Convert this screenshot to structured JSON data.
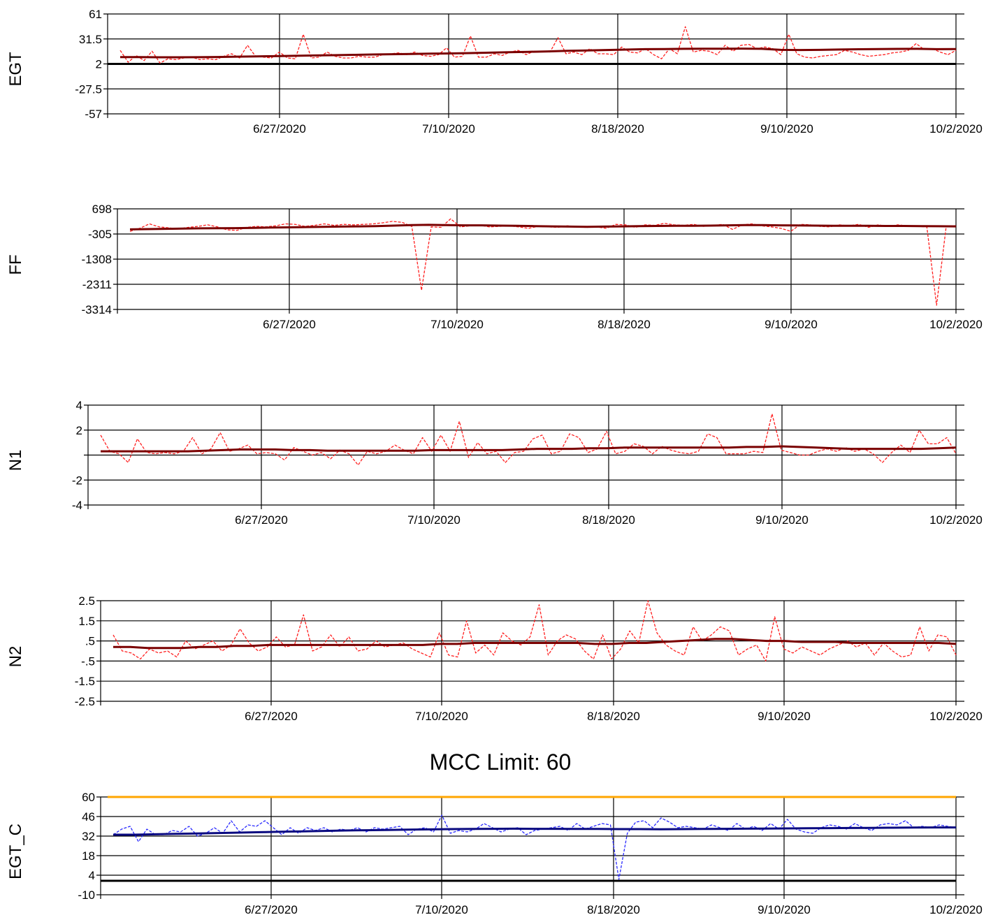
{
  "colors": {
    "raw": "#ff2020",
    "trend": "#7a0000",
    "raw_c": "#2a2aff",
    "trend_c": "#0a0a80",
    "limit": "#ffa500",
    "grid": "#000000"
  },
  "chart_data": [
    {
      "type": "line",
      "ylabel": "EGT",
      "title": "",
      "yticks": [
        "61",
        "31.5",
        "2",
        "-27.5",
        "-57"
      ],
      "ylim": [
        -57,
        61
      ],
      "xticks": [
        "6/27/2020",
        "7/10/2020",
        "8/18/2020",
        "9/10/2020",
        "10/2/2020"
      ],
      "baseline": 2,
      "series": [
        {
          "style": "raw",
          "values": [
            18,
            4,
            12,
            6,
            17,
            3,
            8,
            7,
            9,
            10,
            7,
            8,
            7,
            11,
            14,
            9,
            24,
            11,
            10,
            9,
            16,
            9,
            8,
            37,
            9,
            10,
            16,
            11,
            9,
            9,
            11,
            10,
            10,
            13,
            14,
            15,
            13,
            16,
            12,
            11,
            13,
            21,
            10,
            11,
            35,
            10,
            10,
            14,
            12,
            16,
            18,
            13,
            17,
            17,
            16,
            33,
            14,
            16,
            13,
            20,
            14,
            14,
            13,
            22,
            16,
            15,
            20,
            13,
            8,
            20,
            14,
            46,
            16,
            18,
            17,
            13,
            24,
            17,
            24,
            25,
            20,
            22,
            20,
            13,
            37,
            14,
            10,
            9,
            11,
            12,
            13,
            18,
            16,
            13,
            11,
            12,
            13,
            15,
            16,
            18,
            26,
            19,
            20,
            16,
            13,
            18
          ]
        },
        {
          "style": "trend",
          "values": [
            10,
            10,
            9.8,
            9.8,
            9.9,
            10.2,
            10.6,
            10.9,
            11.2,
            11.6,
            12,
            12.3,
            12.7,
            13.1,
            13.5,
            13.8,
            14.1,
            14.4,
            14.8,
            15.3,
            15.8,
            16.3,
            16.8,
            17.4,
            17.9,
            18.4,
            18.9,
            19.4,
            19.6,
            19.8,
            19.9,
            20,
            20.1,
            19.8,
            18.6,
            18.4,
            18.6,
            19,
            19.3,
            19.5,
            19.7,
            19.8,
            19.4,
            19.5
          ]
        }
      ]
    },
    {
      "type": "line",
      "ylabel": "FF",
      "title": "",
      "yticks": [
        "698",
        "-305",
        "-1308",
        "-2311",
        "-3314"
      ],
      "ylim": [
        -3314,
        698
      ],
      "xticks": [
        "6/27/2020",
        "7/10/2020",
        "8/18/2020",
        "9/10/2020",
        "10/2/2020"
      ],
      "series": [
        {
          "style": "raw",
          "values": [
            -200,
            -80,
            100,
            -20,
            -60,
            -100,
            -40,
            0,
            60,
            -20,
            -140,
            -160,
            -40,
            0,
            -20,
            20,
            100,
            80,
            0,
            40,
            100,
            40,
            80,
            60,
            80,
            100,
            140,
            200,
            160,
            0,
            -2550,
            -20,
            -40,
            300,
            -20,
            20,
            40,
            -20,
            0,
            20,
            -20,
            -80,
            0,
            -20,
            -40,
            20,
            -20,
            -40,
            -20,
            -80,
            80,
            60,
            -40,
            60,
            40,
            120,
            60,
            40,
            80,
            0,
            40,
            80,
            -120,
            60,
            100,
            20,
            -20,
            -80,
            -200,
            80,
            60,
            0,
            -20,
            60,
            20,
            80,
            -40,
            60,
            0,
            60,
            20,
            0,
            -20,
            -3150,
            20,
            20
          ]
        },
        {
          "style": "trend",
          "values": [
            -120,
            -110,
            -100,
            -90,
            -80,
            -75,
            -70,
            -60,
            -50,
            -40,
            -30,
            -20,
            -10,
            0,
            10,
            30,
            50,
            60,
            50,
            40,
            40,
            30,
            20,
            10,
            0,
            -10,
            -20,
            -10,
            0,
            10,
            15,
            20,
            25,
            30,
            40,
            50,
            50,
            40,
            35,
            30,
            25,
            20,
            20,
            15,
            15,
            10,
            5,
            0
          ]
        }
      ]
    },
    {
      "type": "line",
      "ylabel": "N1",
      "title": "",
      "yticks": [
        "4",
        "2",
        "",
        "-2",
        "-4"
      ],
      "ylim": [
        -4,
        4
      ],
      "xticks": [
        "6/27/2020",
        "7/10/2020",
        "8/18/2020",
        "9/10/2020",
        "10/2/2020"
      ],
      "series": [
        {
          "style": "raw",
          "values": [
            1.6,
            0.3,
            0.1,
            -0.6,
            1.3,
            0.2,
            0.1,
            0.2,
            0.1,
            0.3,
            1.4,
            0.1,
            0.5,
            1.8,
            0.3,
            0.5,
            0.8,
            0.1,
            0.2,
            0.1,
            -0.4,
            0.6,
            0.3,
            0,
            0.2,
            -0.3,
            0.4,
            0.1,
            -0.8,
            0.3,
            0.1,
            0.3,
            0.8,
            0.4,
            0.1,
            1.4,
            0.3,
            1.6,
            0.3,
            2.7,
            -0.2,
            1,
            0.1,
            0.3,
            -0.6,
            0.2,
            0.3,
            1.3,
            1.6,
            0.1,
            0.3,
            1.7,
            1.4,
            0.2,
            0.5,
            1.9,
            0.1,
            0.3,
            0.9,
            0.7,
            0.1,
            0.7,
            0.4,
            0.2,
            0.1,
            0.3,
            1.7,
            1.4,
            0.1,
            0.1,
            0.1,
            0.3,
            0.2,
            3.3,
            0.4,
            0.2,
            0,
            0,
            0.3,
            0.5,
            0.3,
            0.6,
            0.3,
            0.5,
            0.1,
            -0.6,
            0.2,
            0.8,
            0.2,
            2,
            0.9,
            0.9,
            1.4,
            0.1
          ]
        },
        {
          "style": "trend",
          "values": [
            0.3,
            0.3,
            0.3,
            0.3,
            0.3,
            0.3,
            0.35,
            0.4,
            0.45,
            0.45,
            0.45,
            0.4,
            0.4,
            0.35,
            0.35,
            0.35,
            0.35,
            0.35,
            0.35,
            0.4,
            0.4,
            0.4,
            0.4,
            0.4,
            0.45,
            0.5,
            0.5,
            0.5,
            0.55,
            0.55,
            0.6,
            0.6,
            0.6,
            0.6,
            0.6,
            0.6,
            0.6,
            0.65,
            0.65,
            0.7,
            0.65,
            0.6,
            0.55,
            0.5,
            0.5,
            0.5,
            0.5,
            0.5,
            0.55,
            0.6
          ]
        }
      ]
    },
    {
      "type": "line",
      "ylabel": "N2",
      "title": "",
      "yticks": [
        "2.5",
        "1.5",
        ".5",
        "-.5",
        "-1.5",
        "-2.5"
      ],
      "ylim": [
        -2.5,
        2.5
      ],
      "xticks": [
        "6/27/2020",
        "7/10/2020",
        "8/18/2020",
        "9/10/2020",
        "10/2/2020"
      ],
      "series": [
        {
          "style": "raw",
          "values": [
            0.8,
            0,
            -0.1,
            -0.4,
            0.1,
            -0.1,
            0,
            -0.3,
            0.5,
            0.1,
            0.3,
            0.5,
            0,
            0.3,
            1.1,
            0.4,
            0,
            0.2,
            0.7,
            0.2,
            0.3,
            1.8,
            0,
            0.2,
            0.8,
            0.2,
            0.7,
            0,
            0.1,
            0.5,
            0.2,
            0.3,
            0.4,
            0.1,
            -0.1,
            -0.3,
            0.9,
            -0.2,
            -0.3,
            1.5,
            -0.1,
            0.3,
            -0.2,
            0.9,
            0.5,
            0.3,
            0.7,
            2.3,
            -0.2,
            0.5,
            0.8,
            0.6,
            0,
            -0.4,
            0.8,
            -0.4,
            0.1,
            1,
            0.4,
            2.5,
            0.9,
            0.3,
            0,
            -0.2,
            1.2,
            0.5,
            0.8,
            1.2,
            1,
            -0.2,
            0.1,
            0.3,
            -0.5,
            1.7,
            0.1,
            -0.1,
            0.2,
            0,
            -0.2,
            0.1,
            0.3,
            0.5,
            0.2,
            0.4,
            -0.2,
            0.4,
            0,
            -0.3,
            -0.2,
            1.2,
            0,
            0.8,
            0.7,
            -0.2
          ]
        },
        {
          "style": "trend",
          "values": [
            0.2,
            0.2,
            0.15,
            0.15,
            0.15,
            0.2,
            0.2,
            0.25,
            0.25,
            0.3,
            0.3,
            0.3,
            0.3,
            0.3,
            0.3,
            0.3,
            0.3,
            0.3,
            0.3,
            0.35,
            0.35,
            0.4,
            0.4,
            0.4,
            0.4,
            0.4,
            0.4,
            0.4,
            0.35,
            0.35,
            0.4,
            0.4,
            0.45,
            0.5,
            0.55,
            0.6,
            0.6,
            0.55,
            0.5,
            0.5,
            0.45,
            0.45,
            0.45,
            0.4,
            0.4,
            0.4,
            0.4,
            0.4,
            0.4,
            0.35
          ]
        }
      ]
    },
    {
      "type": "line",
      "title": "MCC Limit: 60",
      "ylabel": "EGT_C",
      "yticks": [
        "60",
        "46",
        "32",
        "18",
        "4",
        "-10"
      ],
      "ylim": [
        -10,
        60
      ],
      "xticks": [
        "6/27/2020",
        "7/10/2020",
        "8/18/2020",
        "9/10/2020",
        "10/2/2020"
      ],
      "limit": 60,
      "baseline": 0,
      "series": [
        {
          "style": "raw_c",
          "values": [
            33,
            37,
            39,
            28,
            37,
            33,
            33,
            36,
            35,
            39,
            32,
            34,
            38,
            34,
            43,
            35,
            40,
            39,
            43,
            38,
            33,
            38,
            34,
            38,
            36,
            38,
            35,
            37,
            36,
            38,
            35,
            38,
            37,
            38,
            39,
            33,
            37,
            38,
            35,
            47,
            34,
            36,
            35,
            37,
            41,
            38,
            35,
            37,
            38,
            33,
            36,
            37,
            38,
            39,
            36,
            41,
            37,
            39,
            41,
            40,
            1,
            34,
            42,
            43,
            38,
            45,
            42,
            38,
            39,
            38,
            37,
            40,
            38,
            36,
            41,
            37,
            39,
            36,
            41,
            37,
            44,
            37,
            35,
            34,
            38,
            40,
            39,
            37,
            41,
            38,
            36,
            40,
            41,
            40,
            43,
            38,
            39,
            38,
            40,
            39,
            38
          ]
        },
        {
          "style": "trend_c",
          "values": [
            33,
            33,
            33.3,
            33.6,
            33.9,
            34.2,
            34.5,
            34.8,
            35.1,
            35.4,
            35.7,
            36,
            36.2,
            36.4,
            36.6,
            36.8,
            37,
            37.1,
            37.2,
            37.3,
            37.2,
            37.2,
            37.1,
            37.1,
            37,
            37,
            36.9,
            37,
            37.1,
            37.2,
            37.3,
            37.4,
            37.5,
            37.6,
            37.7,
            37.8,
            37.9,
            38,
            38.1,
            38.2,
            38.2
          ]
        }
      ]
    }
  ]
}
